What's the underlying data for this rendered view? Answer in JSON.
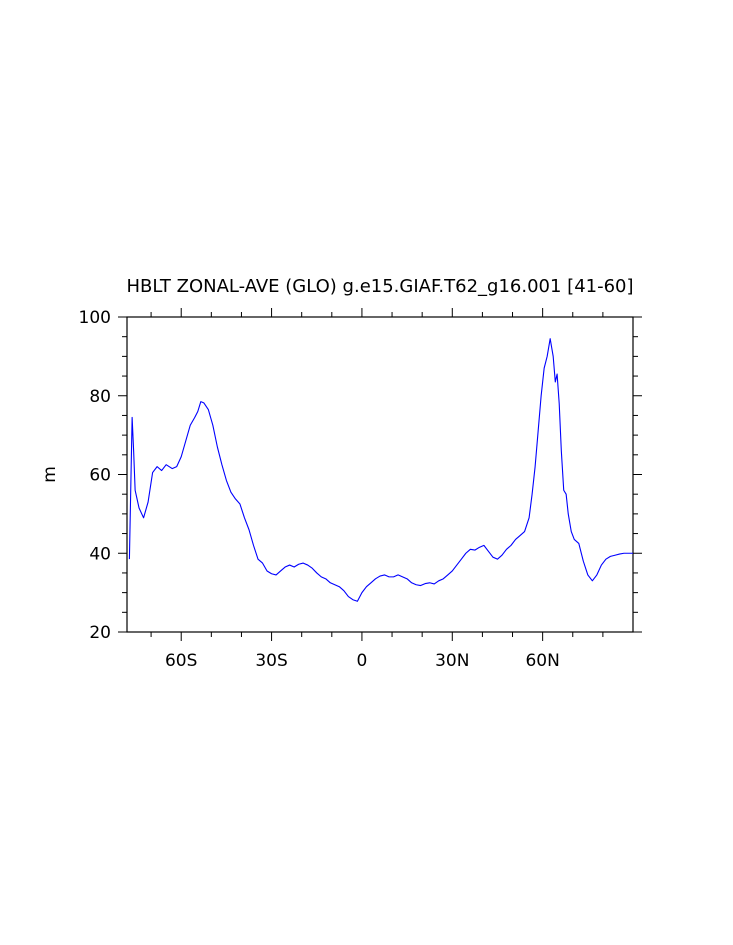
{
  "chart_data": {
    "type": "line",
    "title": "HBLT ZONAL-AVE (GLO) g.e15.GIAF.T62_g16.001 [41-60]",
    "xlabel": "",
    "ylabel": "m",
    "xlim": [
      -78,
      90
    ],
    "ylim": [
      20,
      100
    ],
    "x_ticks": [
      {
        "value": -60,
        "label": "60S"
      },
      {
        "value": -30,
        "label": "30S"
      },
      {
        "value": 0,
        "label": "0"
      },
      {
        "value": 30,
        "label": "30N"
      },
      {
        "value": 60,
        "label": "60N"
      }
    ],
    "y_ticks": [
      {
        "value": 20,
        "label": "20"
      },
      {
        "value": 40,
        "label": "40"
      },
      {
        "value": 60,
        "label": "60"
      },
      {
        "value": 80,
        "label": "80"
      },
      {
        "value": 100,
        "label": "100"
      }
    ],
    "line_color": "#0000ff",
    "grid": false,
    "series": [
      {
        "x": [
          -77.2,
          -76.3,
          -75.8,
          -75.3,
          -74,
          -72.5,
          -71,
          -69.5,
          -68,
          -66.5,
          -65,
          -63,
          -61.5,
          -60,
          -58.5,
          -57,
          -55.5,
          -54.5,
          -53.5,
          -52.5,
          -51,
          -49.5,
          -48,
          -46.5,
          -45,
          -43.5,
          -42,
          -40.5,
          -39,
          -37.5,
          -36,
          -34.5,
          -33,
          -31.5,
          -30,
          -28.5,
          -27,
          -25.5,
          -24,
          -22.5,
          -21,
          -19.5,
          -18,
          -16.5,
          -15,
          -13.5,
          -12,
          -10.5,
          -9,
          -7.5,
          -6,
          -4.5,
          -3,
          -1.5,
          0,
          1.5,
          3,
          4.5,
          6,
          7.5,
          9,
          10.5,
          12,
          13.5,
          15,
          16.5,
          18,
          19.5,
          21,
          22.5,
          24,
          25.5,
          27,
          28.5,
          30,
          31.5,
          33,
          34.5,
          36,
          37.5,
          39,
          40.5,
          42,
          43.5,
          45,
          46.5,
          48,
          49.5,
          51,
          52.5,
          54,
          55.5,
          56.5,
          57.5,
          58.5,
          59.5,
          60.5,
          61.5,
          62.5,
          63.5,
          64.2,
          64.8,
          65.5,
          66.2,
          67,
          67.8,
          68.5,
          69.5,
          70.5,
          72,
          73.5,
          75,
          76.5,
          78,
          79.5,
          81,
          82.5,
          84,
          85.5,
          87,
          88.5,
          90
        ],
        "values": [
          38.5,
          74.5,
          66,
          56,
          51.5,
          49,
          53,
          60.5,
          62,
          61,
          62.5,
          61.5,
          62,
          64.5,
          68.5,
          72.5,
          74.5,
          76,
          78.5,
          78.2,
          76.5,
          72.5,
          67,
          62.5,
          58.5,
          55.5,
          53.8,
          52.5,
          49,
          46,
          42,
          38.5,
          37.5,
          35.5,
          34.8,
          34.5,
          35.5,
          36.5,
          37,
          36.5,
          37.2,
          37.5,
          37,
          36.2,
          35,
          34,
          33.5,
          32.5,
          32,
          31.5,
          30.5,
          29,
          28.2,
          27.8,
          30,
          31.5,
          32.5,
          33.5,
          34.2,
          34.5,
          34,
          34,
          34.5,
          34,
          33.5,
          32.5,
          32,
          31.8,
          32.3,
          32.5,
          32.2,
          33,
          33.5,
          34.5,
          35.5,
          37,
          38.5,
          40,
          41,
          40.8,
          41.5,
          42,
          40.5,
          39,
          38.5,
          39.5,
          41,
          42,
          43.5,
          44.5,
          45.5,
          49,
          55,
          62,
          71,
          80,
          87,
          90,
          94.5,
          90,
          83.5,
          85.5,
          78,
          66,
          56,
          55,
          50,
          45.5,
          43.5,
          42.5,
          38,
          34.5,
          33,
          34.5,
          37,
          38.5,
          39.2,
          39.5,
          39.8,
          40,
          40,
          40
        ]
      }
    ]
  }
}
